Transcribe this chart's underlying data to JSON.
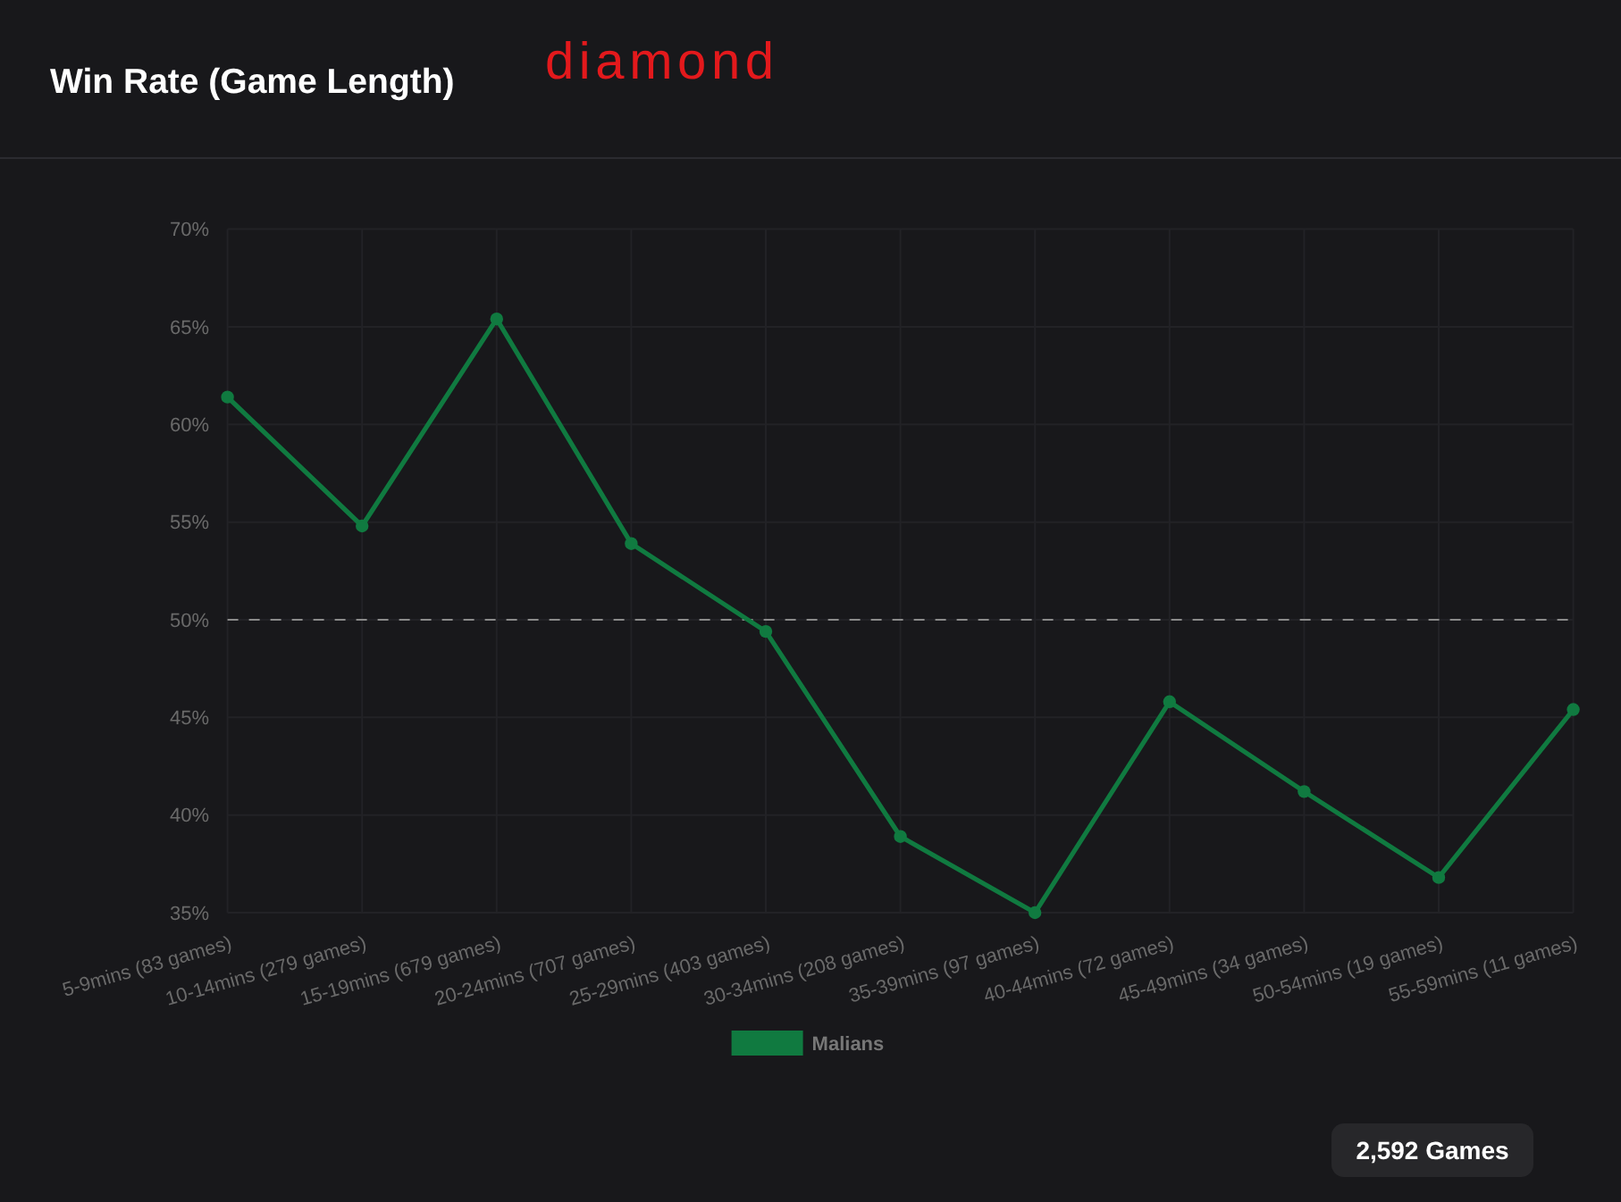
{
  "chart_data": {
    "type": "line",
    "title": "Win Rate (Game Length)",
    "categories": [
      "5-9mins (83 games)",
      "10-14mins (279 games)",
      "15-19mins (679 games)",
      "20-24mins (707 games)",
      "25-29mins (403 games)",
      "30-34mins (208 games)",
      "35-39mins (97 games)",
      "40-44mins (72 games)",
      "45-49mins (34 games)",
      "50-54mins (19 games)",
      "55-59mins (11 games)"
    ],
    "series": [
      {
        "name": "Malians",
        "color": "#107a40",
        "values": [
          61.4,
          54.8,
          65.4,
          53.9,
          49.4,
          38.9,
          35.0,
          45.8,
          41.2,
          36.8,
          45.4
        ]
      }
    ],
    "ylim": [
      35,
      70
    ],
    "yticks": [
      {
        "value": 35,
        "label": "35%"
      },
      {
        "value": 40,
        "label": "40%"
      },
      {
        "value": 45,
        "label": "45%"
      },
      {
        "value": 50,
        "label": "50%"
      },
      {
        "value": 55,
        "label": "55%"
      },
      {
        "value": 60,
        "label": "60%"
      },
      {
        "value": 65,
        "label": "65%"
      },
      {
        "value": 70,
        "label": "70%"
      }
    ],
    "ref_lines": [
      {
        "axis": "y",
        "value": 50,
        "color": "#8a8a8a",
        "line_style": "dashed"
      }
    ],
    "annotations": [
      "diamond",
      "2,592 Games"
    ],
    "grid": true,
    "legend": "bottom",
    "marker": "circle",
    "line_style": "solid"
  }
}
